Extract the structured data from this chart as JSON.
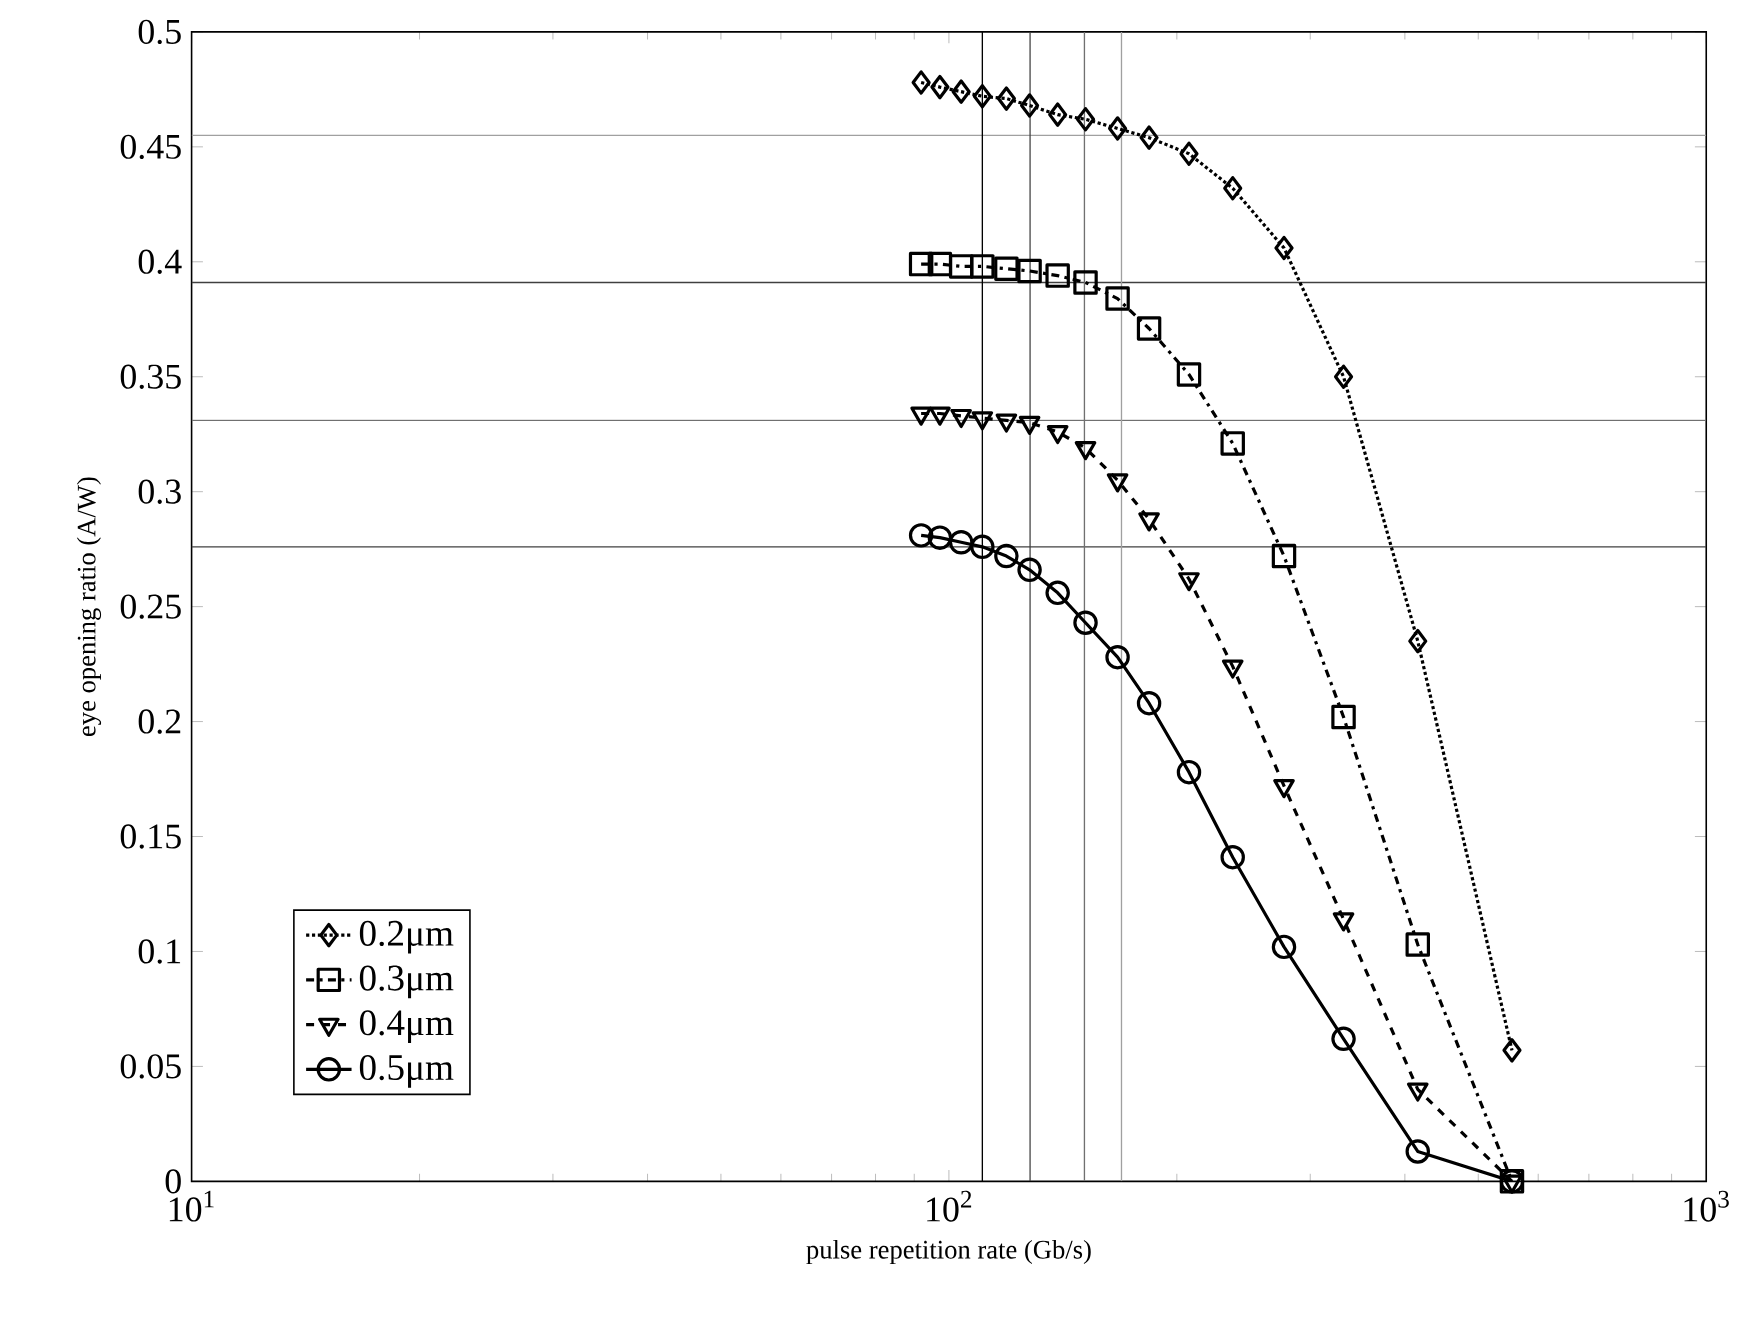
{
  "chart_data": {
    "type": "line",
    "xlabel": "pulse repetition rate (Gb/s)",
    "ylabel": "eye opening ratio (A/W)",
    "x": [
      91.9,
      97.3,
      103.8,
      110.7,
      119.1,
      127.8,
      139.2,
      151.5,
      167,
      183.8,
      207.5,
      237,
      277,
      332,
      416,
      554
    ],
    "series": [
      {
        "name": "0.2μm",
        "color": "#000000",
        "marker": "diamond",
        "line_style": "dotted",
        "values": [
          0.478,
          0.476,
          0.474,
          0.472,
          0.471,
          0.468,
          0.464,
          0.462,
          0.458,
          0.454,
          0.447,
          0.432,
          0.406,
          0.35,
          0.235,
          0.057
        ]
      },
      {
        "name": "0.3μm",
        "color": "#000000",
        "marker": "square",
        "line_style": "dashdot",
        "values": [
          0.399,
          0.399,
          0.398,
          0.398,
          0.397,
          0.396,
          0.394,
          0.391,
          0.384,
          0.371,
          0.351,
          0.321,
          0.272,
          0.202,
          0.103,
          0
        ]
      },
      {
        "name": "0.4μm",
        "color": "#000000",
        "marker": "triangle-down",
        "line_style": "dashed",
        "values": [
          0.334,
          0.334,
          0.333,
          0.332,
          0.331,
          0.33,
          0.326,
          0.319,
          0.305,
          0.288,
          0.262,
          0.224,
          0.172,
          0.114,
          0.04,
          0
        ]
      },
      {
        "name": "0.5μm",
        "color": "#000000",
        "marker": "circle",
        "line_style": "solid",
        "values": [
          0.281,
          0.28,
          0.278,
          0.276,
          0.272,
          0.266,
          0.256,
          0.243,
          0.228,
          0.208,
          0.178,
          0.141,
          0.102,
          0.062,
          0.013,
          0
        ]
      }
    ],
    "log": "x",
    "xlim": [
      10,
      1000
    ],
    "ylim": [
      0,
      0.5
    ],
    "xticks": [
      {
        "value": 10,
        "label": "10$^{1}$"
      },
      {
        "value": 100,
        "label": "10$^{2}$"
      },
      {
        "value": 1000,
        "label": "10$^{3}$"
      }
    ],
    "yticks": [
      0,
      0.05,
      0.1,
      0.15,
      0.2,
      0.25,
      0.3,
      0.35,
      0.4,
      0.45,
      0.5
    ],
    "ref_lines": [
      {
        "axis": "y",
        "value": 0.455,
        "color": "#a0a0a0"
      },
      {
        "axis": "y",
        "value": 0.391,
        "color": "#404040"
      },
      {
        "axis": "y",
        "value": 0.331,
        "color": "#707070"
      },
      {
        "axis": "y",
        "value": 0.276,
        "color": "#404040"
      },
      {
        "axis": "x",
        "value": 110.7,
        "color": "#000000"
      },
      {
        "axis": "x",
        "value": 128,
        "color": "#404040"
      },
      {
        "axis": "x",
        "value": 151,
        "color": "#707070"
      },
      {
        "axis": "x",
        "value": 169,
        "color": "#a0a0a0"
      }
    ],
    "legend": "bottom left"
  }
}
